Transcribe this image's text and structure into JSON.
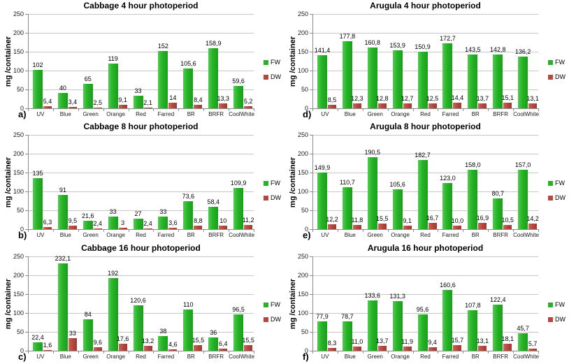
{
  "figure": {
    "ylabel": "mg /container",
    "legend": {
      "fw_label": "FW",
      "dw_label": "DW"
    },
    "colors": {
      "fw_bar": "#27b227",
      "dw_bar": "#b5473f",
      "gridline": "#c6c6c6",
      "axis": "#8c8c8c",
      "text": "#000000"
    },
    "y_axis": {
      "min": 0,
      "max": 250,
      "ticks": [
        0,
        50,
        100,
        150,
        200,
        250
      ]
    }
  },
  "chart_data": [
    {
      "id": "a",
      "panel_label": "a)",
      "type": "bar",
      "title": "Cabbage 4 hour photoperiod",
      "xlabel": "",
      "ylabel": "mg /container",
      "ylim": [
        0,
        250
      ],
      "grid": true,
      "legend_position": "right",
      "categories": [
        "UV",
        "Blue",
        "Green",
        "Orange",
        "Red",
        "Farred",
        "BR",
        "BRFR",
        "CoolWhite"
      ],
      "series": [
        {
          "name": "FW",
          "values": [
            102,
            40,
            65,
            119,
            33,
            152,
            105.6,
            158.9,
            59.6
          ],
          "labels": [
            "102",
            "40",
            "65",
            "119",
            "33",
            "152",
            "105,6",
            "158,9",
            "59,6"
          ]
        },
        {
          "name": "DW",
          "values": [
            5.4,
            3.4,
            2.5,
            9.1,
            2.1,
            14,
            8.4,
            13.3,
            5.2
          ],
          "labels": [
            "5,4",
            "3,4",
            "2,5",
            "9,1",
            "2,1",
            "14",
            "8,4",
            "13,3",
            "5,2"
          ]
        }
      ]
    },
    {
      "id": "d",
      "panel_label": "d)",
      "type": "bar",
      "title": "Arugula 4 hour photoperiod",
      "xlabel": "",
      "ylabel": "mg /container",
      "ylim": [
        0,
        250
      ],
      "grid": true,
      "legend_position": "right",
      "categories": [
        "UV",
        "Blue",
        "Green",
        "Orange",
        "Red",
        "Farred",
        "BR",
        "BRFR",
        "CoolWhite"
      ],
      "series": [
        {
          "name": "FW",
          "values": [
            141.4,
            177.8,
            160.8,
            153.9,
            150.9,
            172.7,
            143.5,
            142.8,
            136.2
          ],
          "labels": [
            "141,4",
            "177,8",
            "160,8",
            "153,9",
            "150,9",
            "172,7",
            "143,5",
            "142,8",
            "136,2"
          ]
        },
        {
          "name": "DW",
          "values": [
            8.5,
            12.3,
            12.8,
            12.7,
            12.5,
            14.4,
            13.7,
            15.1,
            13.1
          ],
          "labels": [
            "8,5",
            "12,3",
            "12,8",
            "12,7",
            "12,5",
            "14,4",
            "13,7",
            "15,1",
            "13,1"
          ]
        }
      ]
    },
    {
      "id": "b",
      "panel_label": "b)",
      "type": "bar",
      "title": "Cabbage 8 hour photoperiod",
      "xlabel": "",
      "ylabel": "mg /container",
      "ylim": [
        0,
        250
      ],
      "grid": true,
      "legend_position": "right",
      "categories": [
        "UV",
        "Blue",
        "Green",
        "Orange",
        "Red",
        "Farred",
        "BR",
        "BRFR",
        "CoolWhite"
      ],
      "series": [
        {
          "name": "FW",
          "values": [
            135,
            91,
            21.6,
            33,
            27,
            33,
            73.6,
            58.4,
            109.9
          ],
          "labels": [
            "135",
            "91",
            "21,6",
            "33",
            "27",
            "33",
            "73,6",
            "58,4",
            "109,9"
          ]
        },
        {
          "name": "DW",
          "values": [
            6.3,
            9.5,
            2.4,
            3,
            2.4,
            3.6,
            8.8,
            10,
            11.2
          ],
          "labels": [
            "6,3",
            "9,5",
            "2,4",
            "3",
            "2,4",
            "3,6",
            "8,8",
            "10",
            "11,2"
          ]
        }
      ]
    },
    {
      "id": "e",
      "panel_label": "e)",
      "type": "bar",
      "title": "Arugula 8 hour photoperiod",
      "xlabel": "",
      "ylabel": "mg /container",
      "ylim": [
        0,
        250
      ],
      "grid": true,
      "legend_position": "right",
      "categories": [
        "UV",
        "Blue",
        "Green",
        "Orange",
        "Red",
        "Farred",
        "BR",
        "BRFR",
        "CoolWhite"
      ],
      "series": [
        {
          "name": "FW",
          "values": [
            149.9,
            110.7,
            190.5,
            105.6,
            182.7,
            123.0,
            158.0,
            80.7,
            157.0
          ],
          "labels": [
            "149,9",
            "110,7",
            "190,5",
            "105,6",
            "182,7",
            "123,0",
            "158,0",
            "80,7",
            "157,0"
          ]
        },
        {
          "name": "DW",
          "values": [
            12.2,
            11.8,
            15.5,
            9.1,
            16.7,
            10.0,
            16.9,
            10.5,
            14.2
          ],
          "labels": [
            "12,2",
            "11,8",
            "15,5",
            "9,1",
            "16,7",
            "10,0",
            "16,9",
            "10,5",
            "14,2"
          ]
        }
      ]
    },
    {
      "id": "c",
      "panel_label": "c)",
      "type": "bar",
      "title": "Cabbage 16 hour photoperiod",
      "xlabel": "",
      "ylabel": "mg /container",
      "ylim": [
        0,
        250
      ],
      "grid": true,
      "legend_position": "right",
      "categories": [
        "UV",
        "Blue",
        "Green",
        "Orange",
        "Red",
        "Farred",
        "BR",
        "BRFR",
        "CoolWhite"
      ],
      "series": [
        {
          "name": "FW",
          "values": [
            22.4,
            232.1,
            84,
            192,
            120.6,
            38,
            110,
            36,
            96.5
          ],
          "labels": [
            "22,4",
            "232,1",
            "84",
            "192",
            "120,6",
            "38",
            "110",
            "36",
            "96,5"
          ]
        },
        {
          "name": "DW",
          "values": [
            1.6,
            33,
            9.6,
            17.6,
            13.2,
            4.6,
            15.5,
            6.4,
            15.5
          ],
          "labels": [
            "1,6",
            "33",
            "9,6",
            "17,6",
            "13,2",
            "4,6",
            "15,5",
            "6,4",
            "15,5"
          ]
        }
      ]
    },
    {
      "id": "f",
      "panel_label": "f)",
      "type": "bar",
      "title": "Arugula 16 hour photoperiod",
      "xlabel": "",
      "ylabel": "mg /container",
      "ylim": [
        0,
        250
      ],
      "grid": true,
      "legend_position": "right",
      "categories": [
        "UV",
        "Blue",
        "Green",
        "Orange",
        "Red",
        "Farred",
        "BR",
        "BRFR",
        "CoolWhite"
      ],
      "series": [
        {
          "name": "FW",
          "values": [
            77.9,
            78.7,
            133.6,
            131.3,
            95.6,
            160.6,
            107.8,
            122.4,
            45.7
          ],
          "labels": [
            "77,9",
            "78,7",
            "133,6",
            "131,3",
            "95,6",
            "160,6",
            "107,8",
            "122,4",
            "45,7"
          ]
        },
        {
          "name": "DW",
          "values": [
            8.3,
            11.0,
            13.7,
            11.9,
            9.4,
            15.7,
            13.1,
            18.1,
            5.7
          ],
          "labels": [
            "8,3",
            "11,0",
            "13,7",
            "11,9",
            "9,4",
            "15,7",
            "13,1",
            "18,1",
            "5,7"
          ]
        }
      ]
    }
  ]
}
